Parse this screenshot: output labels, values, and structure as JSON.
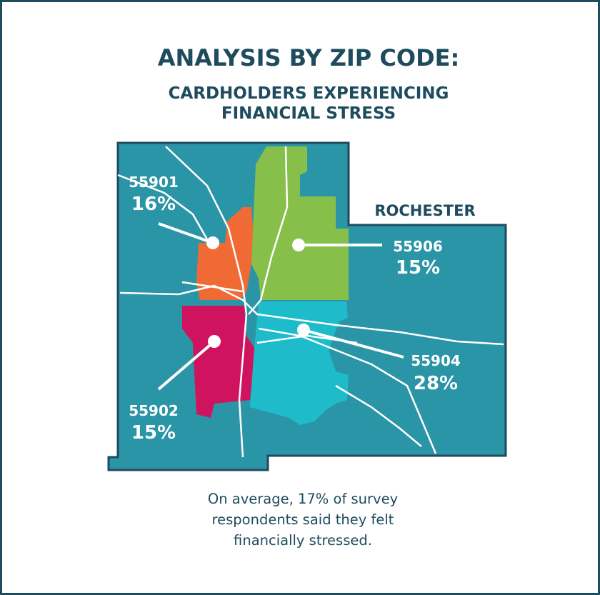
{
  "header": {
    "title": "ANALYSIS BY ZIP CODE:",
    "subtitle_lines": [
      "CARDHOLDERS EXPERIENCING",
      "FINANCIAL STRESS"
    ]
  },
  "map": {
    "city": "ROCHESTER",
    "zones": [
      {
        "zip": "55901",
        "percent": "16%"
      },
      {
        "zip": "55906",
        "percent": "15%"
      },
      {
        "zip": "55904",
        "percent": "28%"
      },
      {
        "zip": "55902",
        "percent": "15%"
      }
    ]
  },
  "footer": {
    "lines": [
      "On average, 17% of survey",
      "respondents said they felt",
      "financially stressed."
    ]
  }
}
